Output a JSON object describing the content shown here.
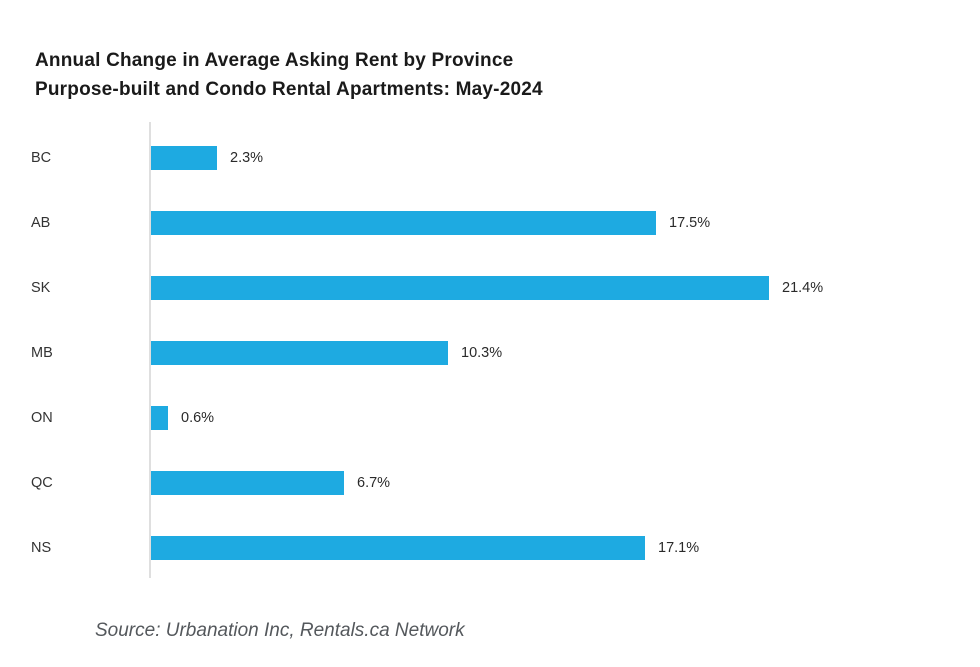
{
  "title": {
    "line1": "Annual Change in Average Asking Rent by Province",
    "line2": "Purpose-built and Condo Rental Apartments: May-2024"
  },
  "source": "Source: Urbanation Inc, Rentals.ca Network",
  "colors": {
    "bar": "#1EAAE1",
    "axis_line": "#DFDFDF",
    "title_text": "#1A1A1A",
    "category_label_text": "#333333",
    "value_label_text": "#2A2A2A",
    "source_text": "#54585C",
    "background": "#FFFFFF"
  },
  "chart_data": {
    "type": "bar",
    "orientation": "horizontal",
    "title": "Annual Change in Average Asking Rent by Province Purpose-built and Condo Rental Apartments: May-2024",
    "categories": [
      "BC",
      "AB",
      "SK",
      "MB",
      "ON",
      "QC",
      "NS"
    ],
    "values": [
      2.3,
      17.5,
      21.4,
      10.3,
      0.6,
      6.7,
      17.1
    ],
    "value_labels": [
      "2.3%",
      "17.5%",
      "21.4%",
      "10.3%",
      "0.6%",
      "6.7%",
      "17.1%"
    ],
    "xlabel": "",
    "ylabel": "",
    "xlim": [
      0,
      21.4
    ],
    "grid": false,
    "legend": false
  }
}
